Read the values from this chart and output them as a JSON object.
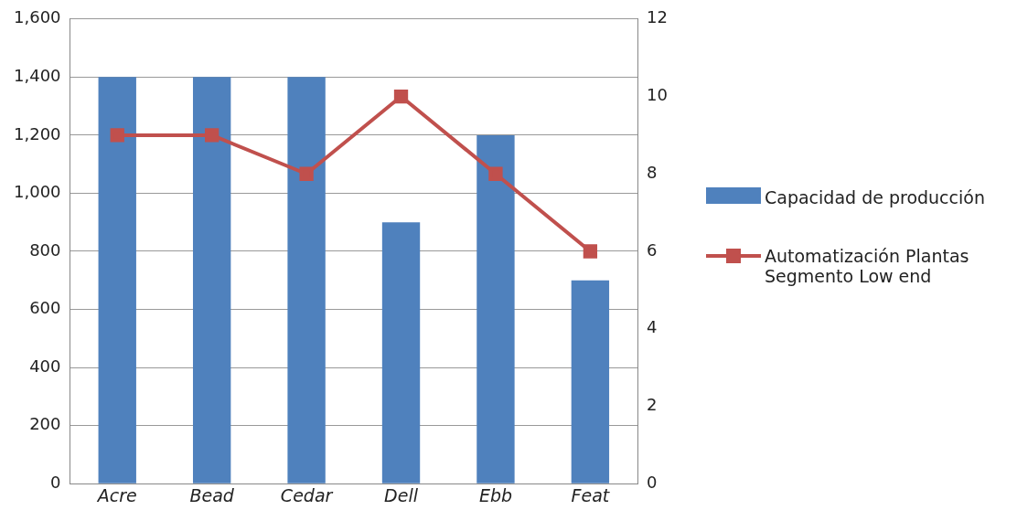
{
  "chart_data": {
    "type": "bar",
    "categories": [
      "Acre",
      "Bead",
      "Cedar",
      "Dell",
      "Ebb",
      "Feat"
    ],
    "series": [
      {
        "name": "Capacidad de producción",
        "color": "#4f81bd",
        "values": [
          1400,
          1400,
          1400,
          900,
          1200,
          700
        ]
      },
      {
        "name": "Automatización Plantas Segmento Low end",
        "type": "line",
        "axis": "y2",
        "color": "#c0504d",
        "values": [
          9,
          9,
          8,
          10,
          8,
          6
        ]
      }
    ],
    "ylim": [
      0,
      1600
    ],
    "yticks": [
      {
        "value": 0,
        "label": "0"
      },
      {
        "value": 200,
        "label": "200"
      },
      {
        "value": 400,
        "label": "400"
      },
      {
        "value": 600,
        "label": "600"
      },
      {
        "value": 800,
        "label": "800"
      },
      {
        "value": 1000,
        "label": "1,000"
      },
      {
        "value": 1200,
        "label": "1,200"
      },
      {
        "value": 1400,
        "label": "1,400"
      },
      {
        "value": 1600,
        "label": "1,600"
      }
    ],
    "y2lim": [
      0,
      12
    ],
    "y2ticks": [
      0,
      2,
      4,
      6,
      8,
      10,
      12
    ],
    "grid": "y",
    "legend": "right",
    "marker": "square",
    "line_style": "solid"
  }
}
